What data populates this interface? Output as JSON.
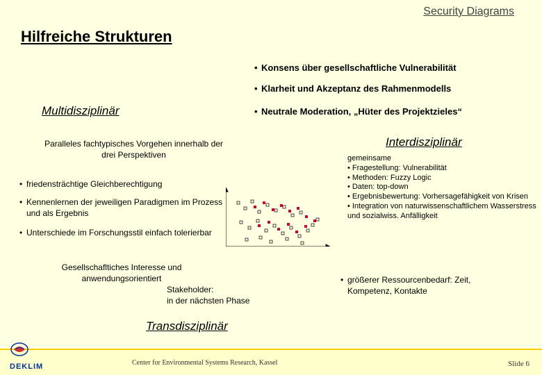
{
  "corner_title": "Security Diagrams",
  "main_title": "Hilfreiche Strukturen",
  "top_bullets": {
    "b0": "Konsens über gesellschaftliche Vulnerabilität",
    "b1": "Klarheit und Akzeptanz des Rahmenmodells",
    "b2": "Neutrale Moderation, „Hüter des Projektzieles“"
  },
  "sections": {
    "multi": "Multidisziplinär",
    "inter": "Interdisziplinär",
    "trans": "Transdisziplinär"
  },
  "multi_block": {
    "lead": "Paralleles fachtypisches Vorgehen innerhalb der drei Perspektiven",
    "b0": "friedensträchtige Gleichberechtigung",
    "b1": "Kennenlernen der jeweiligen Paradigmen im Prozess und als Ergebnis",
    "b2": "Unterschiede im Forschungsstil einfach tolerierbar"
  },
  "inter_block": {
    "lead": "gemeinsame",
    "b0": "Fragestellung: Vulnerabilität",
    "b1": "Methoden: Fuzzy Logic",
    "b2": "Daten: top-down",
    "b3": "Ergebnisbewertung: Vorhersagefähigkeit von Krisen",
    "b4": "Integration von naturwissenschaftlichem Wasserstress und sozialwiss. Anfälligkeit"
  },
  "inter_cost": "größerer Ressourcenbedarf: Zeit, Kompetenz, Kontakte",
  "trans_block": {
    "line1": "Gesellschafltiches Interesse und anwendungsorientiert",
    "line2": "Stakeholder:",
    "line3": "in der nächsten Phase"
  },
  "footer": {
    "org": "DEKLIM",
    "center": "Center for Environmental Systems Research, Kassel",
    "slide": "Slide 6"
  },
  "colors": {
    "background": "#ffffe1",
    "accent_underline": "#ffcc00",
    "text": "#000000",
    "corner_title": "#404040",
    "scatter_marker_fill": "#cc0033",
    "footer_org": "#003399"
  },
  "scatter": {
    "type": "scatter",
    "width": 150,
    "height": 85,
    "axis_color": "#000000",
    "open_points": [
      [
        18,
        22
      ],
      [
        28,
        30
      ],
      [
        38,
        20
      ],
      [
        48,
        35
      ],
      [
        60,
        25
      ],
      [
        72,
        33
      ],
      [
        84,
        28
      ],
      [
        96,
        40
      ],
      [
        108,
        36
      ],
      [
        22,
        50
      ],
      [
        34,
        58
      ],
      [
        46,
        48
      ],
      [
        58,
        62
      ],
      [
        70,
        55
      ],
      [
        82,
        66
      ],
      [
        94,
        58
      ],
      [
        106,
        70
      ],
      [
        118,
        62
      ],
      [
        30,
        75
      ],
      [
        50,
        72
      ],
      [
        65,
        78
      ],
      [
        88,
        74
      ],
      [
        110,
        80
      ],
      [
        125,
        54
      ],
      [
        132,
        46
      ]
    ],
    "filled_points": [
      [
        42,
        28
      ],
      [
        55,
        22
      ],
      [
        68,
        32
      ],
      [
        80,
        26
      ],
      [
        92,
        34
      ],
      [
        104,
        30
      ],
      [
        116,
        42
      ],
      [
        48,
        55
      ],
      [
        62,
        50
      ],
      [
        76,
        60
      ],
      [
        90,
        53
      ],
      [
        102,
        64
      ],
      [
        115,
        56
      ],
      [
        128,
        48
      ]
    ],
    "marker_size": 4
  }
}
